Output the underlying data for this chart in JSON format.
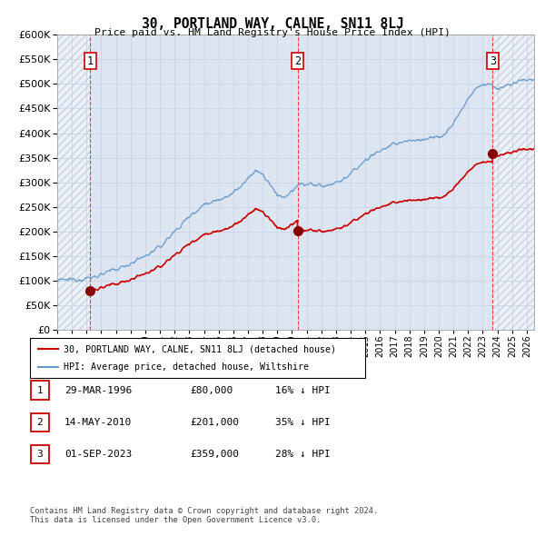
{
  "title": "30, PORTLAND WAY, CALNE, SN11 8LJ",
  "subtitle": "Price paid vs. HM Land Registry's House Price Index (HPI)",
  "ylim": [
    0,
    600000
  ],
  "yticks": [
    0,
    50000,
    100000,
    150000,
    200000,
    250000,
    300000,
    350000,
    400000,
    450000,
    500000,
    550000,
    600000
  ],
  "ytick_labels": [
    "£0",
    "£50K",
    "£100K",
    "£150K",
    "£200K",
    "£250K",
    "£300K",
    "£350K",
    "£400K",
    "£450K",
    "£500K",
    "£550K",
    "£600K"
  ],
  "xmin": 1994.0,
  "xmax": 2026.5,
  "sales": [
    {
      "date": "29-MAR-1996",
      "price": 80000,
      "year": 1996.25,
      "label": "1",
      "hpi_pct_below": 0.16
    },
    {
      "date": "14-MAY-2010",
      "price": 201000,
      "year": 2010.38,
      "label": "2",
      "hpi_pct_below": 0.35
    },
    {
      "date": "01-SEP-2023",
      "price": 359000,
      "year": 2023.67,
      "label": "3",
      "hpi_pct_below": 0.28
    }
  ],
  "legend_property_label": "30, PORTLAND WAY, CALNE, SN11 8LJ (detached house)",
  "legend_hpi_label": "HPI: Average price, detached house, Wiltshire",
  "property_color": "#cc0000",
  "hpi_color": "#6699cc",
  "table_rows": [
    [
      "1",
      "29-MAR-1996",
      "£80,000",
      "16% ↓ HPI"
    ],
    [
      "2",
      "14-MAY-2010",
      "£201,000",
      "35% ↓ HPI"
    ],
    [
      "3",
      "01-SEP-2023",
      "£359,000",
      "28% ↓ HPI"
    ]
  ],
  "footer": "Contains HM Land Registry data © Crown copyright and database right 2024.\nThis data is licensed under the Open Government Licence v3.0.",
  "hatch_color": "#b0bcd0",
  "grid_color": "#c8d4e8",
  "bg_color": "#dde6f0"
}
